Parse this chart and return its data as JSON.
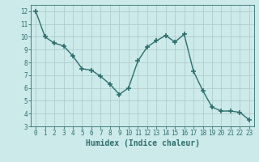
{
  "x": [
    0,
    1,
    2,
    3,
    4,
    5,
    6,
    7,
    8,
    9,
    10,
    11,
    12,
    13,
    14,
    15,
    16,
    17,
    18,
    19,
    20,
    21,
    22,
    23
  ],
  "y": [
    12.0,
    10.0,
    9.5,
    9.3,
    8.5,
    7.5,
    7.4,
    6.9,
    6.3,
    5.5,
    6.0,
    8.1,
    9.2,
    9.7,
    10.1,
    9.6,
    10.2,
    7.3,
    5.8,
    4.5,
    4.2,
    4.2,
    4.1,
    3.5
  ],
  "line_color": "#2e6e6e",
  "marker": "+",
  "marker_size": 4,
  "marker_lw": 1.2,
  "bg_color": "#cceaea",
  "grid_color": "#b0cccc",
  "xlabel": "Humidex (Indice chaleur)",
  "xlabel_fontsize": 7,
  "ylabel_values": [
    3,
    4,
    5,
    6,
    7,
    8,
    9,
    10,
    11,
    12
  ],
  "xlim": [
    -0.5,
    23.5
  ],
  "ylim": [
    3,
    12.5
  ],
  "xtick_labels": [
    "0",
    "1",
    "2",
    "3",
    "4",
    "5",
    "6",
    "7",
    "8",
    "9",
    "10",
    "11",
    "12",
    "13",
    "14",
    "15",
    "16",
    "17",
    "18",
    "19",
    "20",
    "21",
    "22",
    "23"
  ],
  "tick_fontsize": 5.5,
  "figsize": [
    3.2,
    2.0
  ],
  "dpi": 100,
  "linewidth": 1.0
}
